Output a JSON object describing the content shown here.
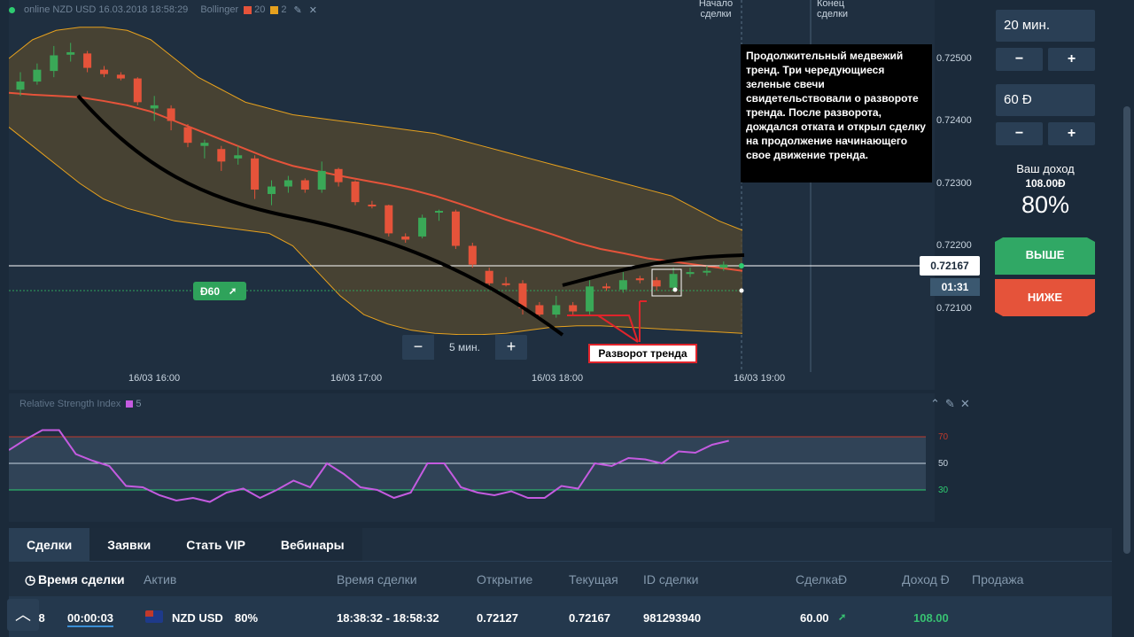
{
  "header": {
    "status": "online",
    "pair": "NZD USD",
    "datetime": "16.03.2018 18:58:29",
    "indicator": "Bollinger",
    "period": "20",
    "deviation": "2",
    "colors": {
      "period": "#e5533a",
      "deviation": "#e6a11e",
      "online": "#2ecc71"
    }
  },
  "chart": {
    "price_ticks": [
      "0.72500",
      "0.72400",
      "0.72300",
      "0.72200",
      "0.72100"
    ],
    "time_ticks": [
      "16/03 16:00",
      "16/03 17:00",
      "16/03 18:00",
      "16/03 19:00"
    ],
    "current_price": "0.72167",
    "timer": "01:31",
    "deal_start_label": "Начало сделки",
    "deal_end_label": "Конец сделки",
    "trade_tag": "Đ60",
    "trade_tag_icon": "arrow-up-right-icon",
    "zoom": {
      "minus": "−",
      "value": "5 мин.",
      "plus": "+"
    },
    "annotation": "Продолжительный медвежий тренд. Три чередующиеся зеленые свечи свидетельствовали о развороте тренда. После разворота, дождался отката и открыл сделку на продолжение начинающего свое движение тренда.",
    "reversal_label": "Разворот тренда"
  },
  "chart_data": {
    "type": "candlestick",
    "title": "",
    "ylim": [
      0.7204,
      0.7256
    ],
    "xlabel": "",
    "ylabel": "",
    "up_color": "#3aa857",
    "down_color": "#e5533a",
    "candles": [
      {
        "o": 0.7245,
        "c": 0.72463,
        "h": 0.72478,
        "l": 0.7244
      },
      {
        "o": 0.72463,
        "c": 0.72482,
        "h": 0.72492,
        "l": 0.72458
      },
      {
        "o": 0.7248,
        "c": 0.72505,
        "h": 0.7252,
        "l": 0.7247
      },
      {
        "o": 0.72506,
        "c": 0.7251,
        "h": 0.72525,
        "l": 0.72495
      },
      {
        "o": 0.72508,
        "c": 0.72485,
        "h": 0.72512,
        "l": 0.72478
      },
      {
        "o": 0.72482,
        "c": 0.72475,
        "h": 0.72488,
        "l": 0.7247
      },
      {
        "o": 0.72474,
        "c": 0.72468,
        "h": 0.72478,
        "l": 0.72465
      },
      {
        "o": 0.72468,
        "c": 0.7243,
        "h": 0.7247,
        "l": 0.72425
      },
      {
        "o": 0.7242,
        "c": 0.72425,
        "h": 0.7244,
        "l": 0.724
      },
      {
        "o": 0.7242,
        "c": 0.724,
        "h": 0.72425,
        "l": 0.72385
      },
      {
        "o": 0.7239,
        "c": 0.72365,
        "h": 0.72395,
        "l": 0.72358
      },
      {
        "o": 0.7236,
        "c": 0.72365,
        "h": 0.7237,
        "l": 0.7234
      },
      {
        "o": 0.72355,
        "c": 0.72335,
        "h": 0.7236,
        "l": 0.7232
      },
      {
        "o": 0.7234,
        "c": 0.72345,
        "h": 0.7236,
        "l": 0.7233
      },
      {
        "o": 0.7234,
        "c": 0.7229,
        "h": 0.72345,
        "l": 0.72275
      },
      {
        "o": 0.72283,
        "c": 0.72295,
        "h": 0.72305,
        "l": 0.72265
      },
      {
        "o": 0.72295,
        "c": 0.72305,
        "h": 0.72312,
        "l": 0.72285
      },
      {
        "o": 0.72305,
        "c": 0.7229,
        "h": 0.72308,
        "l": 0.72285
      },
      {
        "o": 0.7229,
        "c": 0.7232,
        "h": 0.72335,
        "l": 0.72285
      },
      {
        "o": 0.72323,
        "c": 0.72302,
        "h": 0.72325,
        "l": 0.72295
      },
      {
        "o": 0.72303,
        "c": 0.7227,
        "h": 0.72305,
        "l": 0.72265
      },
      {
        "o": 0.72266,
        "c": 0.72265,
        "h": 0.72272,
        "l": 0.7226
      },
      {
        "o": 0.72265,
        "c": 0.7222,
        "h": 0.72266,
        "l": 0.72215
      },
      {
        "o": 0.72215,
        "c": 0.7221,
        "h": 0.7222,
        "l": 0.72205
      },
      {
        "o": 0.72215,
        "c": 0.72245,
        "h": 0.7225,
        "l": 0.72212
      },
      {
        "o": 0.72255,
        "c": 0.72256,
        "h": 0.72258,
        "l": 0.7224
      },
      {
        "o": 0.72255,
        "c": 0.722,
        "h": 0.72258,
        "l": 0.72195
      },
      {
        "o": 0.722,
        "c": 0.7217,
        "h": 0.72205,
        "l": 0.72165
      },
      {
        "o": 0.7216,
        "c": 0.7214,
        "h": 0.72165,
        "l": 0.72135
      },
      {
        "o": 0.7214,
        "c": 0.72138,
        "h": 0.7215,
        "l": 0.72135
      },
      {
        "o": 0.7214,
        "c": 0.721,
        "h": 0.72145,
        "l": 0.7209
      },
      {
        "o": 0.72105,
        "c": 0.7209,
        "h": 0.7211,
        "l": 0.72082
      },
      {
        "o": 0.7209,
        "c": 0.72105,
        "h": 0.7212,
        "l": 0.72085
      },
      {
        "o": 0.72105,
        "c": 0.72095,
        "h": 0.7211,
        "l": 0.7209
      },
      {
        "o": 0.72095,
        "c": 0.72135,
        "h": 0.72145,
        "l": 0.7209
      },
      {
        "o": 0.72135,
        "c": 0.72133,
        "h": 0.7214,
        "l": 0.72128
      },
      {
        "o": 0.7213,
        "c": 0.72145,
        "h": 0.72158,
        "l": 0.72125
      },
      {
        "o": 0.72148,
        "c": 0.72145,
        "h": 0.72152,
        "l": 0.7214
      },
      {
        "o": 0.72145,
        "c": 0.72135,
        "h": 0.7215,
        "l": 0.72128
      },
      {
        "o": 0.72133,
        "c": 0.72155,
        "h": 0.72165,
        "l": 0.7213
      },
      {
        "o": 0.72155,
        "c": 0.72158,
        "h": 0.72165,
        "l": 0.7215
      },
      {
        "o": 0.72158,
        "c": 0.7216,
        "h": 0.72168,
        "l": 0.72152
      },
      {
        "o": 0.72165,
        "c": 0.7217,
        "h": 0.72175,
        "l": 0.7216
      }
    ],
    "bollinger_upper": [
      0.725,
      0.7253,
      0.72545,
      0.7255,
      0.7255,
      0.72545,
      0.7253,
      0.725,
      0.7247,
      0.7245,
      0.7243,
      0.7242,
      0.7241,
      0.72405,
      0.724,
      0.72395,
      0.7239,
      0.72385,
      0.7238,
      0.7237,
      0.7236,
      0.7235,
      0.7234,
      0.7233,
      0.7232,
      0.7231,
      0.723,
      0.7229,
      0.7228,
      0.7226,
      0.7224,
      0.72225
    ],
    "bollinger_middle": [
      0.72445,
      0.72442,
      0.7244,
      0.72438,
      0.72432,
      0.72425,
      0.72415,
      0.724,
      0.72385,
      0.7237,
      0.72355,
      0.7234,
      0.72328,
      0.7232,
      0.72312,
      0.72305,
      0.72298,
      0.7229,
      0.7228,
      0.72268,
      0.72255,
      0.72242,
      0.7223,
      0.72218,
      0.72205,
      0.72195,
      0.72188,
      0.7218,
      0.72175,
      0.7217,
      0.72165,
      0.7216
    ],
    "bollinger_lower": [
      0.7239,
      0.7236,
      0.7233,
      0.723,
      0.72275,
      0.7226,
      0.7225,
      0.7224,
      0.72235,
      0.7223,
      0.72225,
      0.7222,
      0.722,
      0.7216,
      0.7212,
      0.7209,
      0.72075,
      0.72065,
      0.7206,
      0.72058,
      0.72058,
      0.7206,
      0.72065,
      0.7207,
      0.72072,
      0.72072,
      0.7207,
      0.72068,
      0.72066,
      0.72064,
      0.72062,
      0.7206
    ]
  },
  "rsi": {
    "title": "Relative Strength Index",
    "period": "5",
    "levels": [
      "70",
      "50",
      "30"
    ],
    "ylim": [
      0,
      100
    ],
    "values": [
      60,
      68,
      75,
      75,
      57,
      52,
      48,
      33,
      32,
      26,
      22,
      24,
      21,
      28,
      31,
      24,
      30,
      37,
      32,
      50,
      42,
      32,
      30,
      24,
      28,
      50,
      50,
      32,
      28,
      26,
      29,
      24,
      24,
      33,
      31,
      50,
      48,
      54,
      53,
      50,
      59,
      58,
      64,
      67
    ]
  },
  "panel": {
    "duration": "20 мин.",
    "amount": "60 Đ",
    "minus": "−",
    "plus": "+",
    "income_label": "Ваш доход",
    "income_value": "108.00Đ",
    "percent": "80%",
    "up_label": "ВЫШЕ",
    "down_label": "НИЖЕ"
  },
  "bottom": {
    "tabs": [
      "Сделки",
      "Заявки",
      "Стать VIP",
      "Вебинары"
    ],
    "headers": [
      "Время сделки",
      "Актив",
      "Время сделки",
      "Открытие",
      "Текущая",
      "ID сделки",
      "СделкаĐ",
      "Доход Đ",
      "Продажа"
    ],
    "clock_icon": "clock-icon",
    "row": {
      "time_left_part": ":58",
      "remaining": "00:00:03",
      "asset": "NZD USD",
      "percent": "80%",
      "range": "18:38:32 - 18:58:32",
      "open": "0.72127",
      "current": "0.72167",
      "id": "981293940",
      "amount": "60.00",
      "income": "108.00"
    },
    "back_to_top_icon": "chevron-up-icon"
  }
}
